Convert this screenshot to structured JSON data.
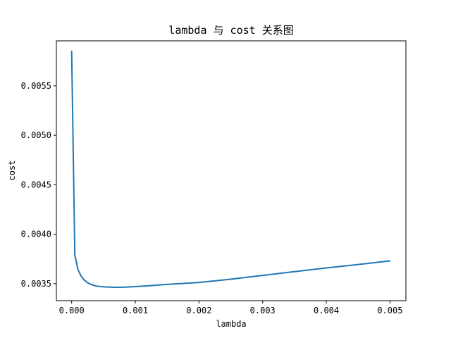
{
  "chart_data": {
    "type": "line",
    "title": "lambda 与 cost 关系图",
    "xlabel": "lambda",
    "ylabel": "cost",
    "xlim": [
      -0.00024,
      0.00525
    ],
    "ylim": [
      0.003328,
      0.005955
    ],
    "xticks": [
      0.0,
      0.001,
      0.002,
      0.003,
      0.004,
      0.005
    ],
    "xtick_labels": [
      "0.000",
      "0.001",
      "0.002",
      "0.003",
      "0.004",
      "0.005"
    ],
    "yticks": [
      0.0035,
      0.004,
      0.0045,
      0.005,
      0.0055
    ],
    "ytick_labels": [
      "0.0035",
      "0.0040",
      "0.0045",
      "0.0050",
      "0.0055"
    ],
    "grid": false,
    "legend": false,
    "colors": {
      "line": "#1f77b4",
      "axes": "#000000",
      "background": "#ffffff"
    },
    "series": [
      {
        "x": [
          0.0,
          5e-05,
          0.0001,
          0.00015,
          0.0002,
          0.00025,
          0.0003,
          0.00035,
          0.0004,
          0.0005,
          0.0006,
          0.0007,
          0.0008,
          0.0009,
          0.001,
          0.0012,
          0.0015,
          0.002,
          0.0025,
          0.003,
          0.0035,
          0.004,
          0.0045,
          0.005
        ],
        "y": [
          0.00585,
          0.00379,
          0.00364,
          0.003575,
          0.003535,
          0.00351,
          0.003493,
          0.003482,
          0.003475,
          0.003468,
          0.003465,
          0.003463,
          0.003464,
          0.003467,
          0.00347,
          0.003478,
          0.003493,
          0.003512,
          0.003545,
          0.003583,
          0.003622,
          0.003659,
          0.003694,
          0.00373
        ]
      }
    ]
  }
}
